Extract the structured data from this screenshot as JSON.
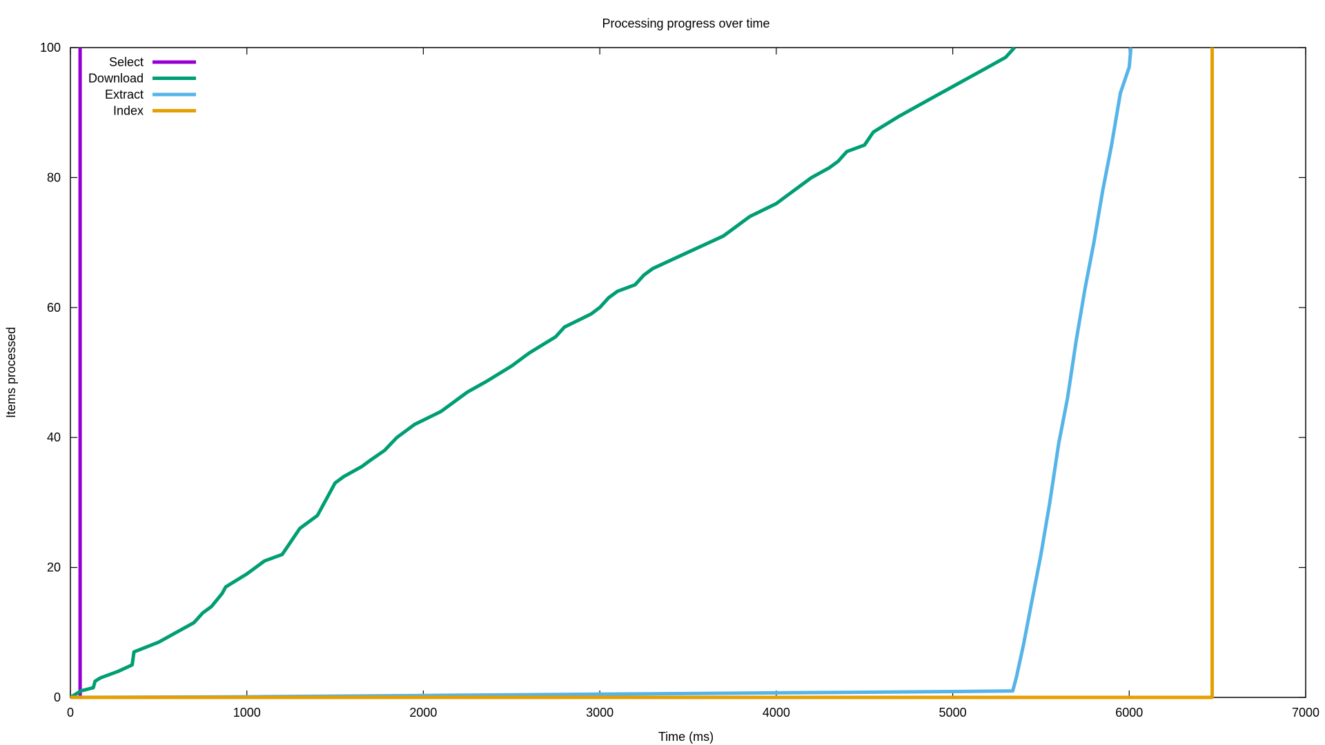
{
  "chart_data": {
    "type": "line",
    "title": "Processing progress over time",
    "xlabel": "Time (ms)",
    "ylabel": "Items processed",
    "xlim": [
      0,
      7000
    ],
    "ylim": [
      0,
      100
    ],
    "xticks": [
      0,
      1000,
      2000,
      3000,
      4000,
      5000,
      6000,
      7000
    ],
    "yticks": [
      0,
      20,
      40,
      60,
      80,
      100
    ],
    "grid": false,
    "legend_position": "top-left",
    "series": [
      {
        "name": "Select",
        "color": "#9400d3",
        "x": [
          0,
          55,
          55,
          55
        ],
        "y": [
          0,
          0,
          50,
          100
        ]
      },
      {
        "name": "Download",
        "color": "#009e73",
        "x": [
          0,
          60,
          130,
          140,
          170,
          270,
          350,
          360,
          500,
          600,
          700,
          750,
          800,
          860,
          880,
          1000,
          1100,
          1200,
          1300,
          1400,
          1450,
          1500,
          1550,
          1650,
          1700,
          1780,
          1850,
          1950,
          2100,
          2150,
          2200,
          2250,
          2350,
          2500,
          2600,
          2750,
          2800,
          2950,
          3000,
          3050,
          3100,
          3200,
          3250,
          3300,
          3500,
          3700,
          3750,
          3850,
          4000,
          4100,
          4150,
          4200,
          4300,
          4350,
          4400,
          4500,
          4550,
          4700,
          4900,
          5000,
          5100,
          5200,
          5300,
          5350
        ],
        "y": [
          0,
          1,
          1.5,
          2.5,
          3,
          4,
          5,
          7,
          8.5,
          10,
          11.5,
          13,
          14,
          16,
          17,
          19,
          21,
          22,
          26,
          28,
          30.5,
          33,
          34,
          35.5,
          36.5,
          38,
          40,
          42,
          44,
          45,
          46,
          47,
          48.5,
          51,
          53,
          55.5,
          57,
          59,
          60,
          61.5,
          62.5,
          63.5,
          65,
          66,
          68.5,
          71,
          72,
          74,
          76,
          78,
          79,
          80,
          81.5,
          82.5,
          84,
          85,
          87,
          89.5,
          92.5,
          94,
          95.5,
          97,
          98.5,
          100
        ]
      },
      {
        "name": "Extract",
        "color": "#56b4e9",
        "x": [
          0,
          1000,
          2000,
          3000,
          4000,
          5000,
          5340,
          5360,
          5400,
          5450,
          5500,
          5550,
          5600,
          5650,
          5700,
          5750,
          5800,
          5850,
          5900,
          5950,
          6000,
          6010
        ],
        "y": [
          0,
          0.1,
          0.3,
          0.5,
          0.7,
          0.9,
          1,
          3,
          8,
          15,
          22,
          30,
          39,
          46,
          55,
          63,
          70,
          78,
          85,
          93,
          97,
          100
        ]
      },
      {
        "name": "Index",
        "color": "#e69f00",
        "x": [
          0,
          6470,
          6470
        ],
        "y": [
          0,
          0,
          100
        ]
      }
    ]
  }
}
